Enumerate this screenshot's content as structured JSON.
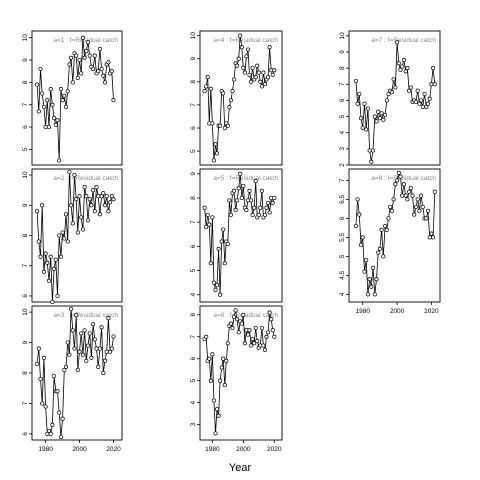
{
  "figure": {
    "xlabel": "Year"
  },
  "chart_data": [
    {
      "type": "line",
      "label": "a=1  :  f=Residual catch",
      "ylim": [
        4.3,
        10.3
      ],
      "yticks": [
        5,
        6,
        7,
        8,
        9,
        10
      ],
      "xlim": [
        1972,
        2025
      ],
      "xticks": [
        1980,
        2000,
        2020
      ],
      "show_xticks": false,
      "x_start": 1975,
      "values": [
        7.9,
        6.7,
        8.6,
        7.5,
        6.9,
        6.0,
        7.2,
        6.0,
        7.7,
        7.0,
        6.4,
        6.1,
        6.3,
        4.5,
        7.7,
        7.2,
        7.4,
        6.9,
        7.6,
        8.8,
        9.1,
        8.0,
        9.3,
        9.2,
        8.2,
        9.0,
        8.4,
        10.0,
        9.1,
        9.4,
        9.8,
        9.2,
        8.7,
        8.6,
        9.2,
        8.4,
        8.5,
        9.5,
        8.6,
        8.3,
        8.0,
        8.8,
        8.9,
        8.4,
        8.5,
        7.2
      ]
    },
    {
      "type": "line",
      "label": "a=2  :  f=Residual catch",
      "ylim": [
        5.8,
        10.2
      ],
      "yticks": [
        6,
        7,
        8,
        9,
        10
      ],
      "xlim": [
        1972,
        2025
      ],
      "xticks": [
        1980,
        2000,
        2020
      ],
      "show_xticks": false,
      "x_start": 1975,
      "values": [
        8.8,
        7.8,
        7.3,
        9.0,
        6.8,
        7.4,
        7.1,
        6.5,
        7.3,
        5.8,
        6.9,
        7.2,
        6.0,
        8.0,
        7.3,
        8.1,
        7.9,
        8.7,
        7.8,
        10.1,
        9.0,
        8.4,
        10.0,
        9.2,
        8.1,
        9.3,
        8.6,
        8.2,
        9.6,
        9.3,
        8.5,
        9.2,
        9.0,
        9.5,
        8.8,
        9.6,
        9.3,
        8.7,
        9.3,
        9.4,
        9.0,
        9.3,
        8.8,
        9.1,
        9.3,
        9.2
      ]
    },
    {
      "type": "line",
      "label": "a=3  :  f=Residual catch",
      "ylim": [
        5.8,
        10.2
      ],
      "yticks": [
        6,
        7,
        8,
        9,
        10
      ],
      "xlim": [
        1972,
        2025
      ],
      "xticks": [
        1980,
        2000,
        2020
      ],
      "show_xticks": true,
      "x_start": 1975,
      "values": [
        8.3,
        8.8,
        7.8,
        7.0,
        8.5,
        6.9,
        6.0,
        6.1,
        6.0,
        6.3,
        7.9,
        7.4,
        7.4,
        6.7,
        5.9,
        6.5,
        8.1,
        8.2,
        9.0,
        8.6,
        10.1,
        9.4,
        8.8,
        9.9,
        8.1,
        8.7,
        9.3,
        8.6,
        9.4,
        8.4,
        8.9,
        9.3,
        8.5,
        9.6,
        9.1,
        8.8,
        8.2,
        8.8,
        9.5,
        8.0,
        8.4,
        8.7,
        9.8,
        8.7,
        8.8,
        9.2
      ]
    },
    {
      "type": "line",
      "label": "a=4  :  f=Residual catch",
      "ylim": [
        4.4,
        10.2
      ],
      "yticks": [
        5,
        6,
        7,
        8,
        9,
        10
      ],
      "xlim": [
        1972,
        2025
      ],
      "xticks": [
        1980,
        2000,
        2020
      ],
      "show_xticks": false,
      "x_start": 1975,
      "values": [
        7.6,
        7.8,
        8.2,
        6.2,
        7.7,
        6.2,
        4.6,
        5.3,
        4.9,
        6.1,
        6.1,
        7.6,
        7.5,
        6.0,
        6.2,
        6.1,
        6.9,
        7.2,
        7.6,
        8.1,
        8.8,
        8.7,
        9.0,
        10.0,
        9.5,
        8.6,
        8.4,
        9.1,
        9.4,
        8.3,
        8.0,
        8.6,
        8.1,
        8.2,
        8.7,
        8.4,
        8.0,
        7.8,
        8.4,
        7.9,
        8.1,
        8.2,
        9.5,
        8.5,
        8.3,
        8.5
      ]
    },
    {
      "type": "line",
      "label": "a=5  :  f=Residual catch",
      "ylim": [
        3.7,
        9.2
      ],
      "yticks": [
        4,
        5,
        6,
        7,
        8,
        9
      ],
      "xlim": [
        1972,
        2025
      ],
      "xticks": [
        1980,
        2000,
        2020
      ],
      "show_xticks": false,
      "x_start": 1975,
      "values": [
        7.6,
        6.8,
        7.3,
        6.9,
        5.3,
        7.2,
        4.5,
        4.2,
        4.4,
        5.9,
        4.0,
        6.2,
        6.7,
        5.3,
        6.2,
        6.1,
        7.9,
        7.3,
        8.2,
        8.3,
        7.5,
        7.9,
        8.4,
        9.0,
        8.0,
        8.5,
        7.6,
        7.5,
        7.9,
        8.3,
        7.9,
        7.3,
        7.6,
        8.7,
        7.2,
        7.3,
        7.6,
        8.3,
        7.2,
        7.3,
        7.6,
        7.8,
        7.4,
        8.0,
        7.8,
        8.0
      ]
    },
    {
      "type": "line",
      "label": "a=6  :  f=Residual catch",
      "ylim": [
        2.3,
        8.4
      ],
      "yticks": [
        3,
        4,
        5,
        6,
        7,
        8
      ],
      "xlim": [
        1972,
        2025
      ],
      "xticks": [
        1980,
        2000,
        2020
      ],
      "show_xticks": true,
      "x_start": 1975,
      "values": [
        6.9,
        7.0,
        5.9,
        6.0,
        5.0,
        6.2,
        4.1,
        2.6,
        3.7,
        3.4,
        5.0,
        5.6,
        6.0,
        4.8,
        5.9,
        6.7,
        7.5,
        7.6,
        7.4,
        7.9,
        8.2,
        7.8,
        7.2,
        7.7,
        7.6,
        8.0,
        6.7,
        7.3,
        7.1,
        7.3,
        6.6,
        6.9,
        6.7,
        7.4,
        6.8,
        6.5,
        6.6,
        7.4,
        6.6,
        6.4,
        7.0,
        7.2,
        8.1,
        7.8,
        7.3,
        7.0
      ]
    },
    {
      "type": "line",
      "label": "a=7  :  f=Residual catch",
      "ylim": [
        2.0,
        10.3
      ],
      "yticks": [
        2,
        3,
        4,
        5,
        6,
        7,
        8,
        9,
        10
      ],
      "xlim": [
        1972,
        2025
      ],
      "xticks": [
        1980,
        2000,
        2020
      ],
      "show_xticks": false,
      "x_start": 1976,
      "values": [
        7.2,
        5.8,
        6.4,
        4.9,
        4.3,
        5.8,
        4.2,
        5.5,
        2.9,
        2.2,
        2.9,
        5.0,
        4.7,
        5.3,
        4.9,
        5.2,
        4.8,
        5.1,
        6.0,
        6.4,
        6.6,
        6.5,
        7.3,
        6.8,
        9.6,
        8.3,
        7.9,
        8.1,
        8.5,
        7.8,
        8.0,
        6.6,
        6.8,
        5.9,
        6.0,
        5.9,
        6.6,
        5.8,
        6.0,
        5.6,
        6.4,
        5.6,
        5.8,
        6.1,
        7.0,
        8.0,
        7.0
      ]
    },
    {
      "type": "line",
      "label": "a=8  :  f=Residual catch",
      "ylim": [
        3.8,
        7.3
      ],
      "yticks": [
        4.0,
        4.5,
        5.0,
        5.5,
        6.0,
        6.5,
        7.0
      ],
      "xlim": [
        1972,
        2025
      ],
      "xticks": [
        1980,
        2000,
        2020
      ],
      "show_xticks": true,
      "x_start": 1976,
      "values": [
        5.8,
        6.5,
        6.1,
        5.3,
        5.5,
        4.6,
        4.9,
        4.0,
        4.4,
        4.2,
        4.7,
        4.0,
        4.4,
        5.1,
        5.2,
        5.7,
        5.0,
        5.8,
        5.7,
        6.0,
        6.3,
        6.2,
        6.5,
        6.9,
        7.0,
        7.2,
        7.1,
        6.6,
        6.9,
        6.6,
        6.5,
        6.7,
        6.8,
        6.6,
        6.1,
        6.3,
        6.5,
        6.2,
        6.6,
        6.3,
        6.0,
        6.0,
        6.2,
        5.5,
        5.6,
        5.5,
        6.7
      ]
    }
  ]
}
